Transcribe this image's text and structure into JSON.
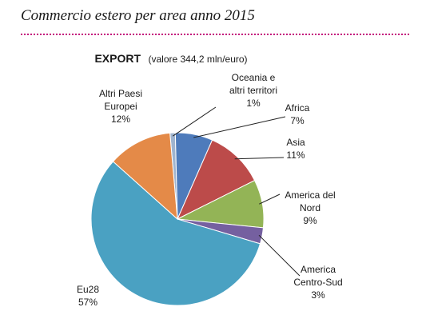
{
  "page_heading": "Commercio estero per area anno 2015",
  "chart_data": {
    "type": "pie",
    "title": "EXPORT",
    "subtitle": "(valore 344,2 mln/euro)",
    "slices": [
      {
        "name": "Oceania e altri territori",
        "lines": [
          "Oceania e",
          "altri territori"
        ],
        "value": 1,
        "label": "1%",
        "color": "#9fb4cf"
      },
      {
        "name": "Africa",
        "lines": [
          "Africa"
        ],
        "value": 7,
        "label": "7%",
        "color": "#4e7bbb"
      },
      {
        "name": "Asia",
        "lines": [
          "Asia"
        ],
        "value": 11,
        "label": "11%",
        "color": "#bc4b4a"
      },
      {
        "name": "America del Nord",
        "lines": [
          "America del",
          "Nord"
        ],
        "value": 9,
        "label": "9%",
        "color": "#93b456"
      },
      {
        "name": "America Centro-Sud",
        "lines": [
          "America",
          "Centro-Sud"
        ],
        "value": 3,
        "label": "3%",
        "color": "#7560a0"
      },
      {
        "name": "Eu28",
        "lines": [
          "Eu28"
        ],
        "value": 57,
        "label": "57%",
        "color": "#4aa1c2"
      },
      {
        "name": "Altri Paesi Europei",
        "lines": [
          "Altri Paesi",
          "Europei"
        ],
        "value": 12,
        "label": "12%",
        "color": "#e48a48"
      }
    ]
  }
}
